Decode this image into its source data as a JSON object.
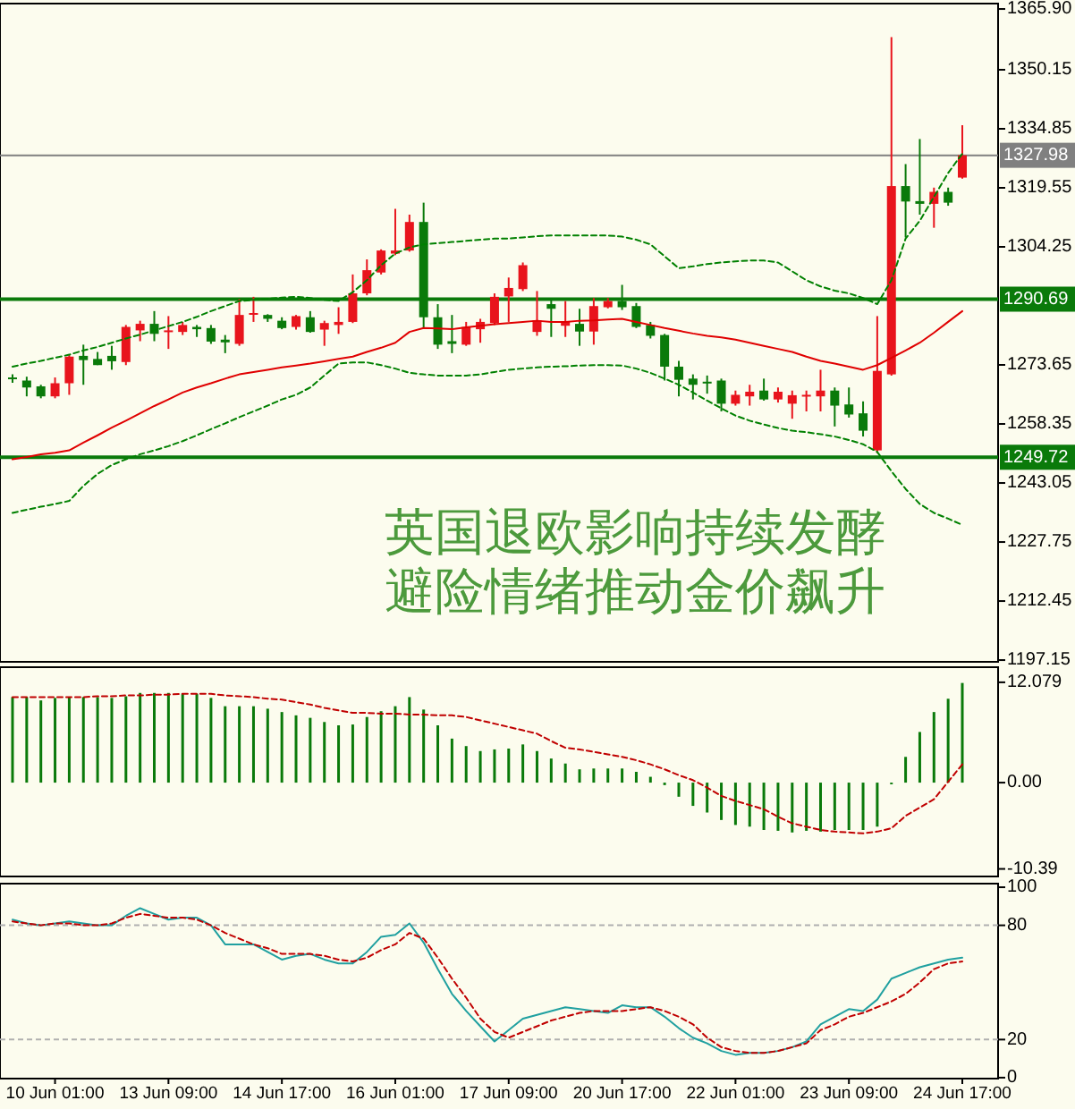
{
  "chart_data": [
    {
      "type": "candlestick",
      "tick_labels": "y",
      "ylim": [
        1196.7,
        1367.3
      ],
      "yticks": [
        {
          "value": 1365.9,
          "label": "1365.90"
        },
        {
          "value": 1350.15,
          "label": "1350.15"
        },
        {
          "value": 1334.85,
          "label": "1334.85"
        },
        {
          "value": 1319.55,
          "label": "1319.55"
        },
        {
          "value": 1304.25,
          "label": "1304.25"
        },
        {
          "value": 1273.65,
          "label": "1273.65"
        },
        {
          "value": 1258.35,
          "label": "1258.35"
        },
        {
          "value": 1243.05,
          "label": "1243.05"
        },
        {
          "value": 1227.75,
          "label": "1227.75"
        },
        {
          "value": 1212.45,
          "label": "1212.45"
        },
        {
          "value": 1197.15,
          "label": "1197.15"
        }
      ],
      "categories": [
        null,
        null,
        null,
        null,
        null,
        null,
        null,
        null,
        null,
        null,
        null,
        null,
        null,
        null,
        null,
        null,
        null,
        null,
        null,
        null,
        null,
        null,
        null,
        null,
        null,
        null,
        null,
        null,
        null,
        null,
        null,
        null,
        null,
        null,
        null,
        null,
        null,
        null,
        null,
        null,
        null,
        null,
        null,
        null,
        null,
        null,
        null,
        null,
        null,
        null,
        null,
        null,
        null,
        null,
        null,
        null,
        null,
        null,
        null,
        null,
        null,
        null,
        null,
        null,
        null,
        null,
        null,
        null
      ],
      "ohlc": [
        [
          1270.4,
          1271.2,
          1269.0,
          1270.1
        ],
        [
          1269.6,
          1270.6,
          1265.5,
          1267.8
        ],
        [
          1268.1,
          1268.5,
          1265.0,
          1265.5
        ],
        [
          1265.5,
          1270.4,
          1265.0,
          1268.9
        ],
        [
          1268.9,
          1276.3,
          1265.9,
          1275.8
        ],
        [
          1276.0,
          1278.9,
          1268.5,
          1274.9
        ],
        [
          1275.2,
          1277.0,
          1273.6,
          1273.6
        ],
        [
          1276.0,
          1278.6,
          1272.4,
          1274.6
        ],
        [
          1274.4,
          1284.0,
          1273.6,
          1283.5
        ],
        [
          1282.6,
          1285.1,
          1279.8,
          1284.3
        ],
        [
          1284.3,
          1287.6,
          1279.8,
          1281.7
        ],
        [
          1282.2,
          1286.3,
          1277.8,
          1282.6
        ],
        [
          1282.2,
          1284.8,
          1281.4,
          1284.0
        ],
        [
          1283.5,
          1284.0,
          1280.9,
          1282.9
        ],
        [
          1283.2,
          1284.0,
          1279.1,
          1279.7
        ],
        [
          1280.2,
          1281.4,
          1276.7,
          1279.5
        ],
        [
          1279.1,
          1290.7,
          1278.6,
          1286.6
        ],
        [
          1286.8,
          1291.3,
          1284.8,
          1287.1
        ],
        [
          1286.6,
          1286.8,
          1284.8,
          1285.6
        ],
        [
          1285.1,
          1286.0,
          1282.9,
          1283.2
        ],
        [
          1283.5,
          1286.6,
          1282.8,
          1286.3
        ],
        [
          1286.0,
          1287.6,
          1282.0,
          1282.2
        ],
        [
          1282.8,
          1285.1,
          1278.6,
          1284.5
        ],
        [
          1284.0,
          1288.6,
          1281.7,
          1284.8
        ],
        [
          1284.8,
          1297.1,
          1284.5,
          1292.2
        ],
        [
          1292.2,
          1301.0,
          1291.7,
          1298.2
        ],
        [
          1297.6,
          1303.6,
          1297.1,
          1303.3
        ],
        [
          1302.5,
          1314.1,
          1302.1,
          1303.3
        ],
        [
          1303.3,
          1312.6,
          1303.0,
          1310.7
        ],
        [
          1310.7,
          1315.7,
          1283.2,
          1286.0
        ],
        [
          1286.0,
          1289.4,
          1277.8,
          1278.9
        ],
        [
          1279.8,
          1286.6,
          1276.7,
          1279.1
        ],
        [
          1278.9,
          1284.8,
          1278.6,
          1283.5
        ],
        [
          1282.9,
          1285.6,
          1279.4,
          1284.8
        ],
        [
          1284.5,
          1292.2,
          1284.0,
          1291.3
        ],
        [
          1291.4,
          1296.3,
          1284.8,
          1293.6
        ],
        [
          1293.3,
          1300.2,
          1292.8,
          1299.5
        ],
        [
          1282.2,
          1292.8,
          1281.2,
          1285.2
        ],
        [
          1289.4,
          1291.0,
          1280.9,
          1288.2
        ],
        [
          1283.8,
          1290.2,
          1280.9,
          1284.8
        ],
        [
          1284.3,
          1288.2,
          1278.6,
          1282.3
        ],
        [
          1282.3,
          1291.0,
          1278.9,
          1288.9
        ],
        [
          1288.6,
          1291.0,
          1288.3,
          1290.2
        ],
        [
          1290.2,
          1294.4,
          1287.9,
          1288.6
        ],
        [
          1288.9,
          1289.7,
          1283.2,
          1283.5
        ],
        [
          1284.0,
          1284.8,
          1280.5,
          1281.2
        ],
        [
          1281.4,
          1281.7,
          1269.6,
          1273.2
        ],
        [
          1273.2,
          1274.7,
          1265.5,
          1269.8
        ],
        [
          1270.1,
          1271.2,
          1264.7,
          1268.5
        ],
        [
          1269.3,
          1270.9,
          1266.2,
          1269.0
        ],
        [
          1269.6,
          1270.1,
          1261.6,
          1263.6
        ],
        [
          1263.6,
          1267.0,
          1263.1,
          1265.9
        ],
        [
          1265.5,
          1268.5,
          1263.1,
          1266.7
        ],
        [
          1267.0,
          1270.1,
          1264.4,
          1264.7
        ],
        [
          1264.7,
          1267.8,
          1263.9,
          1266.7
        ],
        [
          1263.6,
          1267.0,
          1259.7,
          1265.8
        ],
        [
          1265.6,
          1267.0,
          1261.6,
          1265.9
        ],
        [
          1265.5,
          1272.4,
          1261.6,
          1267.0
        ],
        [
          1267.0,
          1267.8,
          1257.7,
          1263.1
        ],
        [
          1263.4,
          1267.8,
          1260.0,
          1260.8
        ],
        [
          1261.1,
          1264.2,
          1255.1,
          1256.6
        ],
        [
          1251.5,
          1286.3,
          1250.8,
          1272.1
        ],
        [
          1271.2,
          1358.6,
          1270.9,
          1320.0
        ],
        [
          1320.0,
          1325.7,
          1306.7,
          1316.0
        ],
        [
          1316.1,
          1332.2,
          1312.6,
          1315.4
        ],
        [
          1315.4,
          1319.6,
          1309.2,
          1318.5
        ],
        [
          1318.5,
          1319.6,
          1314.9,
          1315.7
        ],
        [
          1322.2,
          1335.8,
          1321.9,
          1327.98
        ]
      ],
      "colors": [
        "#0a7a0a",
        "#0a7a0a",
        "#0a7a0a",
        "#e8141c",
        "#e8141c",
        "#0a7a0a",
        "#0a7a0a",
        "#0a7a0a",
        "#e8141c",
        "#e8141c",
        "#0a7a0a",
        "#e8141c",
        "#e8141c",
        "#0a7a0a",
        "#0a7a0a",
        "#0a7a0a",
        "#e8141c",
        "#e8141c",
        "#0a7a0a",
        "#0a7a0a",
        "#e8141c",
        "#0a7a0a",
        "#e8141c",
        "#e8141c",
        "#e8141c",
        "#e8141c",
        "#e8141c",
        "#e8141c",
        "#e8141c",
        "#0a7a0a",
        "#0a7a0a",
        "#0a7a0a",
        "#e8141c",
        "#e8141c",
        "#e8141c",
        "#e8141c",
        "#e8141c",
        "#e8141c",
        "#0a7a0a",
        "#e8141c",
        "#0a7a0a",
        "#e8141c",
        "#e8141c",
        "#0a7a0a",
        "#0a7a0a",
        "#0a7a0a",
        "#0a7a0a",
        "#0a7a0a",
        "#0a7a0a",
        "#0a7a0a",
        "#0a7a0a",
        "#e8141c",
        "#e8141c",
        "#0a7a0a",
        "#e8141c",
        "#e8141c",
        "#e8141c",
        "#e8141c",
        "#0a7a0a",
        "#0a7a0a",
        "#0a7a0a",
        "#e8141c",
        "#e8141c",
        "#0a7a0a",
        "#0a7a0a",
        "#e8141c",
        "#0a7a0a",
        "#e8141c"
      ],
      "series": [
        {
          "type": "line",
          "color": "#e00000",
          "values": [
            1249.2,
            1249.8,
            1250.5,
            1250.9,
            1251.5,
            1253.5,
            1255.4,
            1257.4,
            1259.2,
            1261.1,
            1263.0,
            1264.7,
            1266.5,
            1267.8,
            1268.9,
            1270.1,
            1271.2,
            1271.8,
            1272.4,
            1273.0,
            1273.5,
            1274.0,
            1274.6,
            1275.2,
            1275.8,
            1277.0,
            1278.1,
            1279.4,
            1282.2,
            1283.2,
            1283.1,
            1282.9,
            1283.4,
            1283.8,
            1284.2,
            1284.5,
            1284.8,
            1285.1,
            1284.8,
            1284.8,
            1285.1,
            1285.2,
            1285.4,
            1285.6,
            1284.8,
            1284.0,
            1283.2,
            1282.5,
            1281.8,
            1281.2,
            1280.8,
            1280.2,
            1279.4,
            1278.6,
            1277.8,
            1277.0,
            1275.8,
            1274.7,
            1274.0,
            1273.2,
            1272.4,
            1273.6,
            1275.5,
            1277.4,
            1279.4,
            1282.0,
            1284.8,
            1287.6
          ]
        },
        {
          "type": "line",
          "color": "#008000",
          "line_style": "dashed",
          "values": [
            1273.2,
            1274.0,
            1274.7,
            1275.5,
            1276.3,
            1277.4,
            1278.3,
            1279.4,
            1280.5,
            1281.5,
            1282.6,
            1283.7,
            1284.8,
            1286.1,
            1287.6,
            1288.9,
            1290.2,
            1290.5,
            1290.8,
            1291.1,
            1291.3,
            1291.0,
            1290.5,
            1290.2,
            1292.5,
            1295.6,
            1299.5,
            1302.5,
            1304.1,
            1304.9,
            1305.2,
            1305.5,
            1305.8,
            1306.1,
            1306.4,
            1306.4,
            1306.7,
            1307.0,
            1307.2,
            1307.2,
            1307.2,
            1307.2,
            1307.2,
            1306.9,
            1306.1,
            1304.9,
            1301.8,
            1298.7,
            1299.2,
            1299.8,
            1300.2,
            1300.5,
            1300.7,
            1300.7,
            1300.2,
            1297.9,
            1295.6,
            1294.0,
            1292.9,
            1292.2,
            1291.0,
            1289.4,
            1295.6,
            1306.4,
            1311.0,
            1317.2,
            1323.4,
            1328.4
          ]
        },
        {
          "type": "line",
          "color": "#008000",
          "line_style": "dashed",
          "values": [
            1235.3,
            1236.1,
            1236.9,
            1237.6,
            1238.4,
            1242.3,
            1245.4,
            1247.7,
            1249.2,
            1250.5,
            1251.5,
            1252.6,
            1253.9,
            1255.4,
            1257.0,
            1258.5,
            1260.1,
            1261.6,
            1263.1,
            1264.7,
            1265.9,
            1267.8,
            1270.9,
            1274.0,
            1274.3,
            1274.3,
            1273.6,
            1272.7,
            1271.6,
            1271.2,
            1270.9,
            1270.9,
            1270.9,
            1271.2,
            1271.8,
            1272.4,
            1272.7,
            1273.0,
            1273.2,
            1273.3,
            1273.5,
            1273.6,
            1273.6,
            1273.5,
            1272.7,
            1271.6,
            1270.1,
            1268.5,
            1266.5,
            1264.4,
            1262.4,
            1260.5,
            1259.2,
            1258.2,
            1257.3,
            1256.6,
            1256.2,
            1255.7,
            1255.1,
            1254.2,
            1253.1,
            1251.1,
            1246.1,
            1241.5,
            1237.6,
            1235.3,
            1233.8,
            1232.2
          ]
        }
      ],
      "ref_lines": [
        {
          "axis": "y",
          "value": 1327.98,
          "label": "1327.98",
          "color": "#808080"
        },
        {
          "axis": "y",
          "value": 1290.69,
          "label": "1290.69",
          "color": "#0a7a0a"
        },
        {
          "axis": "y",
          "value": 1249.72,
          "label": "1249.72",
          "color": "#0a7a0a"
        }
      ],
      "annotations": [
        "英国退欧影响持续发酵",
        "避险情绪推动金价飙升"
      ]
    },
    {
      "type": "bar",
      "tick_labels": "y",
      "ylim": [
        -11.3,
        13.9
      ],
      "yticks": [
        {
          "value": 12.079,
          "label": "12.079"
        },
        {
          "value": 0,
          "label": "0.00"
        },
        {
          "value": -10.39,
          "label": "-10.39"
        }
      ],
      "categories": [
        null,
        null,
        null,
        null,
        null,
        null,
        null,
        null,
        null,
        null,
        null,
        null,
        null,
        null,
        null,
        null,
        null,
        null,
        null,
        null,
        null,
        null,
        null,
        null,
        null,
        null,
        null,
        null,
        null,
        null,
        null,
        null,
        null,
        null,
        null,
        null,
        null,
        null,
        null,
        null,
        null,
        null,
        null,
        null,
        null,
        null,
        null,
        null,
        null,
        null,
        null,
        null,
        null,
        null,
        null,
        null,
        null,
        null,
        null,
        null,
        null,
        null,
        null,
        null,
        null,
        null,
        null,
        null
      ],
      "series": [
        {
          "type": "bar",
          "color": "#0a7a0a",
          "values": [
            10.3,
            10.3,
            9.9,
            10.2,
            10.3,
            10.3,
            10.3,
            10.2,
            10.4,
            10.8,
            10.8,
            10.8,
            10.7,
            10.7,
            10.2,
            9.2,
            9.2,
            9.2,
            8.9,
            8.5,
            8.1,
            7.8,
            7.3,
            6.9,
            7.0,
            7.9,
            8.6,
            9.2,
            10.3,
            8.8,
            6.9,
            5.3,
            4.4,
            3.8,
            4.0,
            4.1,
            4.6,
            3.8,
            2.9,
            2.3,
            1.6,
            1.7,
            1.7,
            1.7,
            1.3,
            0.7,
            -0.3,
            -1.7,
            -2.8,
            -3.6,
            -4.5,
            -5.1,
            -5.3,
            -5.7,
            -5.8,
            -6.0,
            -5.8,
            -5.9,
            -5.7,
            -5.7,
            -5.7,
            -5.3,
            -0.2,
            3.1,
            6.1,
            8.5,
            10.1,
            12.0
          ]
        },
        {
          "type": "line",
          "color": "#c00000",
          "line_style": "dashed",
          "values": [
            10.3,
            10.3,
            10.3,
            10.3,
            10.3,
            10.3,
            10.4,
            10.4,
            10.5,
            10.5,
            10.6,
            10.6,
            10.7,
            10.7,
            10.7,
            10.5,
            10.4,
            10.3,
            10.1,
            10.0,
            9.7,
            9.4,
            9.0,
            8.7,
            8.4,
            8.4,
            8.3,
            8.3,
            8.2,
            8.2,
            8.1,
            8.1,
            7.9,
            7.5,
            7.1,
            6.7,
            6.3,
            5.9,
            5.0,
            4.2,
            4.0,
            3.7,
            3.4,
            3.1,
            2.7,
            2.2,
            1.6,
            0.9,
            0.3,
            -0.6,
            -1.6,
            -2.2,
            -2.7,
            -3.2,
            -4.1,
            -4.9,
            -5.3,
            -5.7,
            -5.9,
            -6.0,
            -6.1,
            -5.9,
            -5.5,
            -4.0,
            -3.0,
            -2.0,
            0.1,
            2.2
          ]
        }
      ]
    },
    {
      "type": "line",
      "ylim": [
        -0.5,
        101.9
      ],
      "yticks": [
        0,
        20,
        80,
        100
      ],
      "categories": [
        null,
        null,
        null,
        "10 Jun 01:00",
        null,
        null,
        null,
        null,
        null,
        null,
        null,
        "13 Jun 09:00",
        null,
        null,
        null,
        null,
        null,
        null,
        null,
        "14 Jun 17:00",
        null,
        null,
        null,
        null,
        null,
        null,
        null,
        "16 Jun 01:00",
        null,
        null,
        null,
        null,
        null,
        null,
        null,
        "17 Jun 09:00",
        null,
        null,
        null,
        null,
        null,
        null,
        null,
        "20 Jun 17:00",
        null,
        null,
        null,
        null,
        null,
        null,
        null,
        "22 Jun 01:00",
        null,
        null,
        null,
        null,
        null,
        null,
        null,
        "23 Jun 09:00",
        null,
        null,
        null,
        null,
        null,
        null,
        null,
        "24 Jun 17:00"
      ],
      "series": [
        {
          "color": "#20a0a0",
          "values": [
            83,
            81,
            80,
            81,
            82,
            81,
            80,
            80,
            85,
            89,
            86,
            83,
            84,
            84,
            80,
            70,
            70,
            70,
            66,
            62,
            64,
            65,
            62,
            60,
            60,
            66,
            74,
            75,
            81,
            71,
            57,
            44,
            35,
            27,
            19,
            25,
            31,
            33,
            35,
            37,
            36,
            35,
            34,
            38,
            37,
            37,
            32,
            26,
            21,
            18,
            14,
            12,
            13,
            13,
            14,
            16,
            19,
            28,
            32,
            36,
            35,
            41,
            52,
            55,
            58,
            60,
            62,
            63
          ]
        },
        {
          "color": "#c00000",
          "line_style": "dashed",
          "values": [
            82,
            81,
            80,
            81,
            81,
            80,
            80,
            81,
            84,
            86,
            85,
            84,
            84,
            83,
            80,
            76,
            73,
            70,
            68,
            65,
            65,
            65,
            64,
            62,
            61,
            63,
            67,
            70,
            76,
            73,
            63,
            52,
            42,
            31,
            24,
            21,
            24,
            27,
            30,
            32,
            34,
            35,
            35,
            35,
            36,
            37,
            35,
            32,
            28,
            21,
            16,
            14,
            13,
            13,
            14,
            16,
            18,
            25,
            28,
            32,
            34,
            37,
            40,
            44,
            50,
            57,
            60,
            61
          ]
        }
      ],
      "ref_lines": [
        {
          "axis": "y",
          "value": 80,
          "color": "#b0b0b0",
          "line_style": "dashed"
        },
        {
          "axis": "y",
          "value": 20,
          "color": "#b0b0b0",
          "line_style": "dashed"
        }
      ]
    }
  ]
}
